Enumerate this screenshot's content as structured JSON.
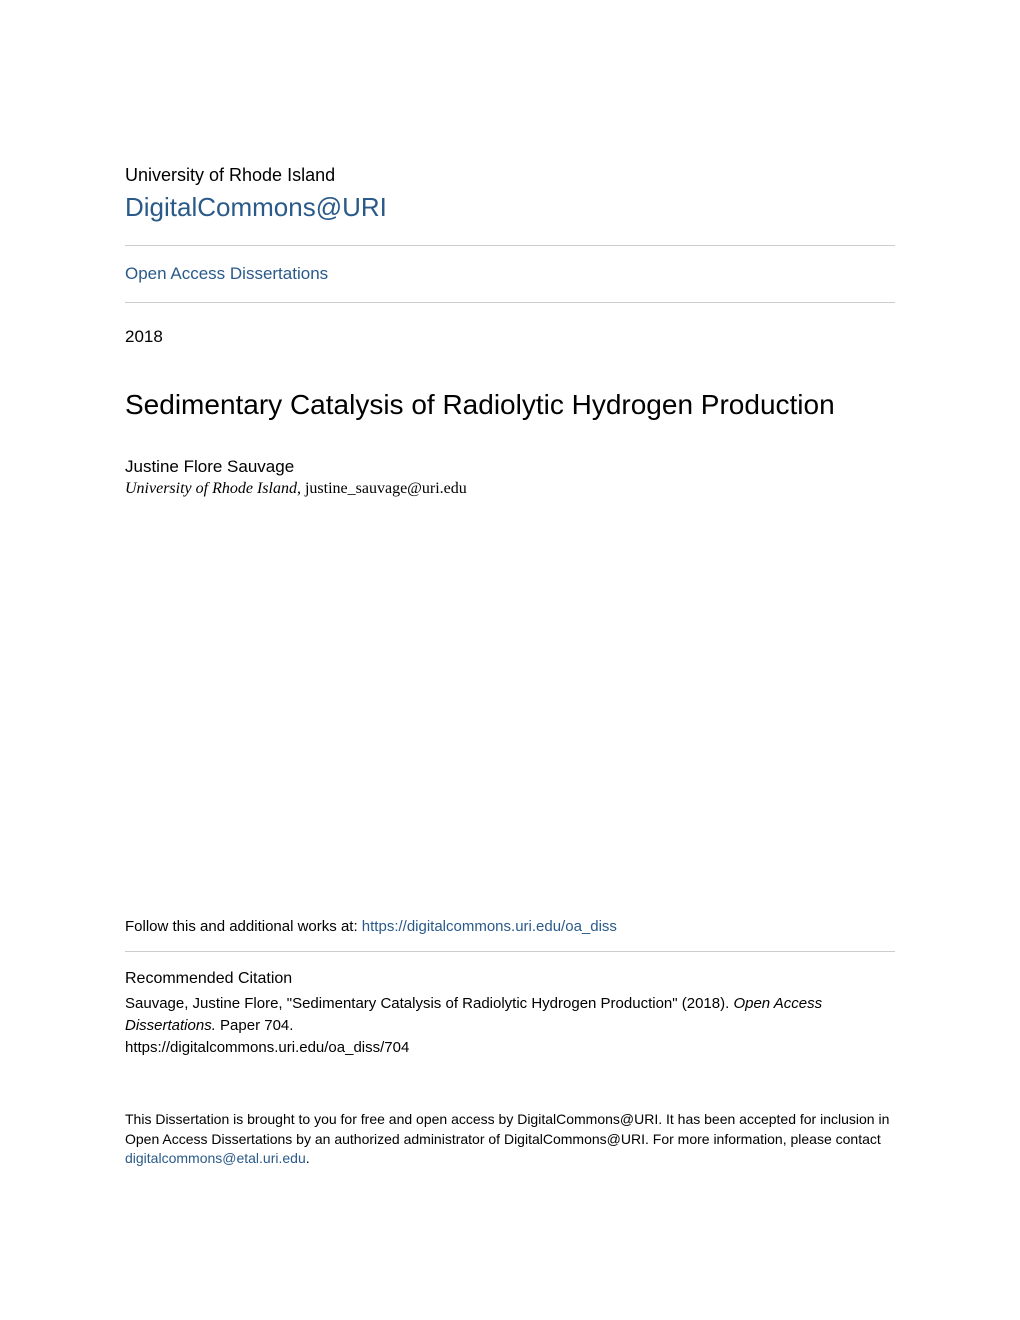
{
  "header": {
    "institution": "University of Rhode Island",
    "repository": "DigitalCommons@URI"
  },
  "collection": {
    "name": "Open Access Dissertations"
  },
  "metadata": {
    "year": "2018",
    "title": "Sedimentary Catalysis of Radiolytic Hydrogen Production",
    "author_name": "Justine Flore Sauvage",
    "author_institution": "University of Rhode Island",
    "author_email": "justine_sauvage@uri.edu"
  },
  "follow": {
    "prefix": "Follow this and additional works at: ",
    "url": "https://digitalcommons.uri.edu/oa_diss"
  },
  "citation": {
    "heading": "Recommended Citation",
    "text_part1": "Sauvage, Justine Flore, \"Sedimentary Catalysis of Radiolytic Hydrogen Production\" (2018). ",
    "text_italic": "Open Access Dissertations.",
    "text_part2": " Paper 704.",
    "url": "https://digitalcommons.uri.edu/oa_diss/704"
  },
  "footer": {
    "text_part1": "This Dissertation is brought to you for free and open access by DigitalCommons@URI. It has been accepted for inclusion in Open Access Dissertations by an authorized administrator of DigitalCommons@URI. For more information, please contact ",
    "contact_email": "digitalcommons@etal.uri.edu",
    "text_part2": "."
  },
  "colors": {
    "link_color": "#2a5a8a",
    "text_color": "#000000",
    "divider_color": "#cccccc",
    "background": "#ffffff"
  },
  "typography": {
    "institution_fontsize": 18,
    "repository_fontsize": 26,
    "collection_fontsize": 17,
    "year_fontsize": 17,
    "title_fontsize": 28,
    "author_fontsize": 17,
    "affiliation_fontsize": 16,
    "follow_fontsize": 15,
    "citation_heading_fontsize": 16,
    "citation_fontsize": 15,
    "footer_fontsize": 14
  }
}
